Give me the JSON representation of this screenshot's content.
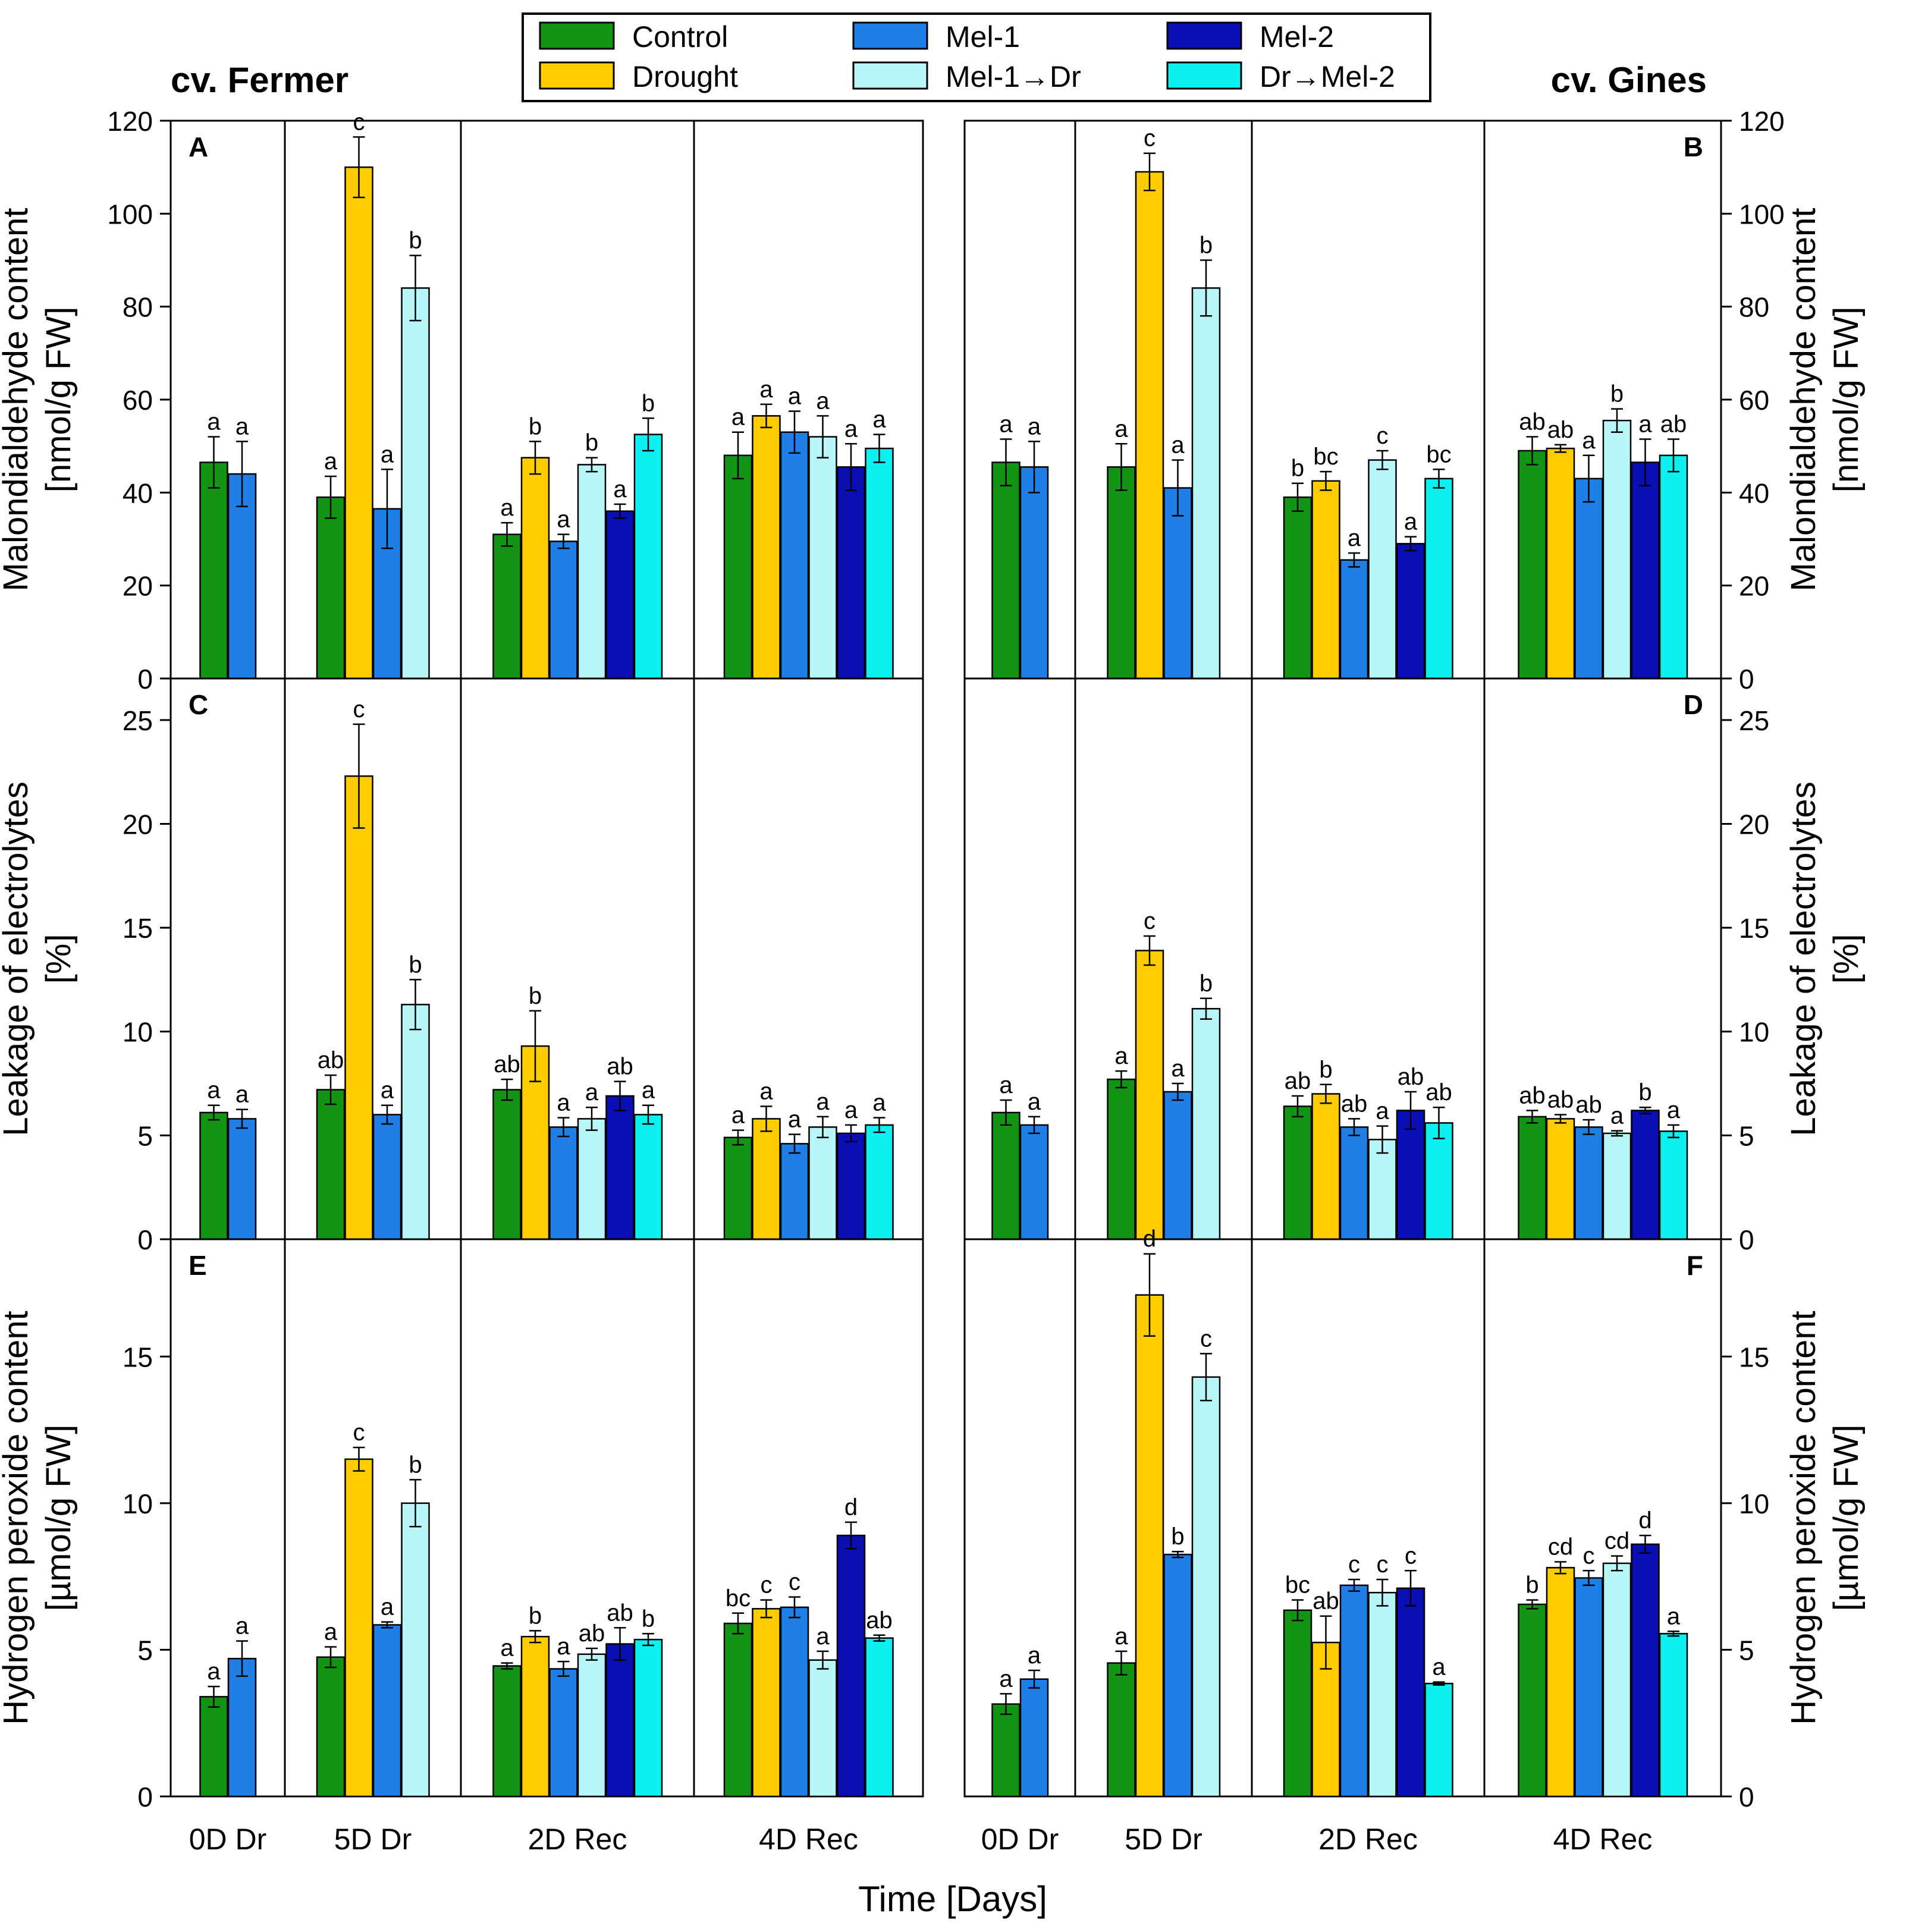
{
  "figure": {
    "left_title": "cv. Fermer",
    "right_title": "cv. Gines",
    "x_axis_title": "Time [Days]"
  },
  "legend": [
    {
      "label": "Control",
      "color": "#149414"
    },
    {
      "label": "Mel-1",
      "color": "#1f7fe6"
    },
    {
      "label": "Mel-2",
      "color": "#0a0fb4"
    },
    {
      "label": "Drought",
      "color": "#ffcc00"
    },
    {
      "label": "Mel-1→Dr",
      "color": "#b8f6f8"
    },
    {
      "label": "Dr→Mel-2",
      "color": "#0cf0f0"
    }
  ],
  "chart_data": [
    {
      "panel": "A",
      "type": "bar",
      "cultivar": "cv. Fermer",
      "ylabel": [
        "Malondialdehyde content",
        "[nmol/g FW]"
      ],
      "ylim": [
        0,
        120
      ],
      "yticks": [
        0,
        20,
        40,
        60,
        80,
        100,
        120
      ],
      "groups": [
        {
          "label": "0D Dr",
          "bars": [
            {
              "series": "Control",
              "value": 46.5,
              "err": 5.5,
              "sig": "a"
            },
            {
              "series": "Mel-1",
              "value": 44,
              "err": 7,
              "sig": "a"
            }
          ]
        },
        {
          "label": "5D Dr",
          "bars": [
            {
              "series": "Control",
              "value": 39,
              "err": 4.5,
              "sig": "a"
            },
            {
              "series": "Drought",
              "value": 110,
              "err": 6.5,
              "sig": "c"
            },
            {
              "series": "Mel-1",
              "value": 36.5,
              "err": 8.5,
              "sig": "a"
            },
            {
              "series": "Mel-1→Dr",
              "value": 84,
              "err": 7,
              "sig": "b"
            }
          ]
        },
        {
          "label": "2D Rec",
          "bars": [
            {
              "series": "Control",
              "value": 31,
              "err": 2.5,
              "sig": "a"
            },
            {
              "series": "Drought",
              "value": 47.5,
              "err": 3.5,
              "sig": "b"
            },
            {
              "series": "Mel-1",
              "value": 29.5,
              "err": 1.5,
              "sig": "a"
            },
            {
              "series": "Mel-1→Dr",
              "value": 46,
              "err": 1.5,
              "sig": "b"
            },
            {
              "series": "Mel-2",
              "value": 36,
              "err": 1.5,
              "sig": "a"
            },
            {
              "series": "Dr→Mel-2",
              "value": 52.5,
              "err": 3.5,
              "sig": "b"
            }
          ]
        },
        {
          "label": "4D Rec",
          "bars": [
            {
              "series": "Control",
              "value": 48,
              "err": 5,
              "sig": "a"
            },
            {
              "series": "Drought",
              "value": 56.5,
              "err": 2.5,
              "sig": "a"
            },
            {
              "series": "Mel-1",
              "value": 53,
              "err": 4.5,
              "sig": "a"
            },
            {
              "series": "Mel-1→Dr",
              "value": 52,
              "err": 4.5,
              "sig": "a"
            },
            {
              "series": "Mel-2",
              "value": 45.5,
              "err": 5,
              "sig": "a"
            },
            {
              "series": "Dr→Mel-2",
              "value": 49.5,
              "err": 3,
              "sig": "a"
            }
          ]
        }
      ]
    },
    {
      "panel": "B",
      "type": "bar",
      "cultivar": "cv. Gines",
      "ylabel": [
        "Malondialdehyde content",
        "[nmol/g FW]"
      ],
      "ylim": [
        0,
        120
      ],
      "yticks": [
        0,
        20,
        40,
        60,
        80,
        100,
        120
      ],
      "groups": [
        {
          "label": "0D Dr",
          "bars": [
            {
              "series": "Control",
              "value": 46.5,
              "err": 5,
              "sig": "a"
            },
            {
              "series": "Mel-1",
              "value": 45.5,
              "err": 5.5,
              "sig": "a"
            }
          ]
        },
        {
          "label": "5D Dr",
          "bars": [
            {
              "series": "Control",
              "value": 45.5,
              "err": 5,
              "sig": "a"
            },
            {
              "series": "Drought",
              "value": 109,
              "err": 4,
              "sig": "c"
            },
            {
              "series": "Mel-1",
              "value": 41,
              "err": 6,
              "sig": "a"
            },
            {
              "series": "Mel-1→Dr",
              "value": 84,
              "err": 6,
              "sig": "b"
            }
          ]
        },
        {
          "label": "2D Rec",
          "bars": [
            {
              "series": "Control",
              "value": 39,
              "err": 3,
              "sig": "b"
            },
            {
              "series": "Drought",
              "value": 42.5,
              "err": 2,
              "sig": "bc"
            },
            {
              "series": "Mel-1",
              "value": 25.5,
              "err": 1.5,
              "sig": "a"
            },
            {
              "series": "Mel-1→Dr",
              "value": 47,
              "err": 2,
              "sig": "c"
            },
            {
              "series": "Mel-2",
              "value": 29,
              "err": 1.5,
              "sig": "a"
            },
            {
              "series": "Dr→Mel-2",
              "value": 43,
              "err": 2,
              "sig": "bc"
            }
          ]
        },
        {
          "label": "4D Rec",
          "bars": [
            {
              "series": "Control",
              "value": 49,
              "err": 3,
              "sig": "ab"
            },
            {
              "series": "Drought",
              "value": 49.5,
              "err": 0.8,
              "sig": "ab"
            },
            {
              "series": "Mel-1",
              "value": 43,
              "err": 5,
              "sig": "a"
            },
            {
              "series": "Mel-1→Dr",
              "value": 55.5,
              "err": 2.5,
              "sig": "b"
            },
            {
              "series": "Mel-2",
              "value": 46.5,
              "err": 5,
              "sig": "a"
            },
            {
              "series": "Dr→Mel-2",
              "value": 48,
              "err": 3.5,
              "sig": "ab"
            }
          ]
        }
      ]
    },
    {
      "panel": "C",
      "type": "bar",
      "cultivar": "cv. Fermer",
      "ylabel": [
        "Leakage of electrolytes",
        "[%]"
      ],
      "ylim": [
        0,
        27
      ],
      "yticks": [
        0,
        5,
        10,
        15,
        20,
        25
      ],
      "groups": [
        {
          "label": "0D Dr",
          "bars": [
            {
              "series": "Control",
              "value": 6.1,
              "err": 0.35,
              "sig": "a"
            },
            {
              "series": "Mel-1",
              "value": 5.8,
              "err": 0.45,
              "sig": "a"
            }
          ]
        },
        {
          "label": "5D Dr",
          "bars": [
            {
              "series": "Control",
              "value": 7.2,
              "err": 0.7,
              "sig": "ab"
            },
            {
              "series": "Drought",
              "value": 22.3,
              "err": 2.5,
              "sig": "c"
            },
            {
              "series": "Mel-1",
              "value": 6,
              "err": 0.45,
              "sig": "a"
            },
            {
              "series": "Mel-1→Dr",
              "value": 11.3,
              "err": 1.2,
              "sig": "b"
            }
          ]
        },
        {
          "label": "2D Rec",
          "bars": [
            {
              "series": "Control",
              "value": 7.2,
              "err": 0.5,
              "sig": "ab"
            },
            {
              "series": "Drought",
              "value": 9.3,
              "err": 1.7,
              "sig": "b"
            },
            {
              "series": "Mel-1",
              "value": 5.4,
              "err": 0.45,
              "sig": "a"
            },
            {
              "series": "Mel-1→Dr",
              "value": 5.8,
              "err": 0.55,
              "sig": "a"
            },
            {
              "series": "Mel-2",
              "value": 6.9,
              "err": 0.7,
              "sig": "ab"
            },
            {
              "series": "Dr→Mel-2",
              "value": 6,
              "err": 0.45,
              "sig": "a"
            }
          ]
        },
        {
          "label": "4D Rec",
          "bars": [
            {
              "series": "Control",
              "value": 4.9,
              "err": 0.35,
              "sig": "a"
            },
            {
              "series": "Drought",
              "value": 5.8,
              "err": 0.6,
              "sig": "a"
            },
            {
              "series": "Mel-1",
              "value": 4.6,
              "err": 0.45,
              "sig": "a"
            },
            {
              "series": "Mel-1→Dr",
              "value": 5.4,
              "err": 0.5,
              "sig": "a"
            },
            {
              "series": "Mel-2",
              "value": 5.1,
              "err": 0.4,
              "sig": "a"
            },
            {
              "series": "Dr→Mel-2",
              "value": 5.5,
              "err": 0.35,
              "sig": "a"
            }
          ]
        }
      ]
    },
    {
      "panel": "D",
      "type": "bar",
      "cultivar": "cv. Gines",
      "ylabel": [
        "Leakage of electrolytes",
        "[%]"
      ],
      "ylim": [
        0,
        27
      ],
      "yticks": [
        0,
        5,
        10,
        15,
        20,
        25
      ],
      "groups": [
        {
          "label": "0D Dr",
          "bars": [
            {
              "series": "Control",
              "value": 6.1,
              "err": 0.6,
              "sig": "a"
            },
            {
              "series": "Mel-1",
              "value": 5.5,
              "err": 0.4,
              "sig": "a"
            }
          ]
        },
        {
          "label": "5D Dr",
          "bars": [
            {
              "series": "Control",
              "value": 7.7,
              "err": 0.4,
              "sig": "a"
            },
            {
              "series": "Drought",
              "value": 13.9,
              "err": 0.7,
              "sig": "c"
            },
            {
              "series": "Mel-1",
              "value": 7.1,
              "err": 0.4,
              "sig": "a"
            },
            {
              "series": "Mel-1→Dr",
              "value": 11.1,
              "err": 0.5,
              "sig": "b"
            }
          ]
        },
        {
          "label": "2D Rec",
          "bars": [
            {
              "series": "Control",
              "value": 6.4,
              "err": 0.5,
              "sig": "ab"
            },
            {
              "series": "Drought",
              "value": 7,
              "err": 0.45,
              "sig": "b"
            },
            {
              "series": "Mel-1",
              "value": 5.4,
              "err": 0.4,
              "sig": "ab"
            },
            {
              "series": "Mel-1→Dr",
              "value": 4.8,
              "err": 0.65,
              "sig": "a"
            },
            {
              "series": "Mel-2",
              "value": 6.2,
              "err": 0.9,
              "sig": "ab"
            },
            {
              "series": "Dr→Mel-2",
              "value": 5.6,
              "err": 0.75,
              "sig": "ab"
            }
          ]
        },
        {
          "label": "4D Rec",
          "bars": [
            {
              "series": "Control",
              "value": 5.9,
              "err": 0.3,
              "sig": "ab"
            },
            {
              "series": "Drought",
              "value": 5.8,
              "err": 0.2,
              "sig": "ab"
            },
            {
              "series": "Mel-1",
              "value": 5.4,
              "err": 0.35,
              "sig": "ab"
            },
            {
              "series": "Mel-1→Dr",
              "value": 5.1,
              "err": 0.12,
              "sig": "a"
            },
            {
              "series": "Mel-2",
              "value": 6.2,
              "err": 0.15,
              "sig": "b"
            },
            {
              "series": "Dr→Mel-2",
              "value": 5.2,
              "err": 0.3,
              "sig": "a"
            }
          ]
        }
      ]
    },
    {
      "panel": "E",
      "type": "bar",
      "cultivar": "cv. Fermer",
      "ylabel": [
        "Hydrogen peroxide content",
        "[µmol/g FW]"
      ],
      "ylim": [
        0,
        19
      ],
      "yticks": [
        0,
        5,
        10,
        15
      ],
      "groups": [
        {
          "label": "0D Dr",
          "bars": [
            {
              "series": "Control",
              "value": 3.4,
              "err": 0.35,
              "sig": "a"
            },
            {
              "series": "Mel-1",
              "value": 4.7,
              "err": 0.6,
              "sig": "a"
            }
          ]
        },
        {
          "label": "5D Dr",
          "bars": [
            {
              "series": "Control",
              "value": 4.75,
              "err": 0.35,
              "sig": "a"
            },
            {
              "series": "Drought",
              "value": 11.5,
              "err": 0.4,
              "sig": "c"
            },
            {
              "series": "Mel-1",
              "value": 5.85,
              "err": 0.1,
              "sig": "a"
            },
            {
              "series": "Mel-1→Dr",
              "value": 10,
              "err": 0.8,
              "sig": "b"
            }
          ]
        },
        {
          "label": "2D Rec",
          "bars": [
            {
              "series": "Control",
              "value": 4.45,
              "err": 0.1,
              "sig": "a"
            },
            {
              "series": "Drought",
              "value": 5.45,
              "err": 0.2,
              "sig": "b"
            },
            {
              "series": "Mel-1",
              "value": 4.35,
              "err": 0.25,
              "sig": "a"
            },
            {
              "series": "Mel-1→Dr",
              "value": 4.85,
              "err": 0.2,
              "sig": "ab"
            },
            {
              "series": "Mel-2",
              "value": 5.2,
              "err": 0.55,
              "sig": "ab"
            },
            {
              "series": "Dr→Mel-2",
              "value": 5.35,
              "err": 0.2,
              "sig": "b"
            }
          ]
        },
        {
          "label": "4D Rec",
          "bars": [
            {
              "series": "Control",
              "value": 5.9,
              "err": 0.35,
              "sig": "bc"
            },
            {
              "series": "Drought",
              "value": 6.4,
              "err": 0.3,
              "sig": "c"
            },
            {
              "series": "Mel-1",
              "value": 6.45,
              "err": 0.35,
              "sig": "c"
            },
            {
              "series": "Mel-1→Dr",
              "value": 4.65,
              "err": 0.3,
              "sig": "a"
            },
            {
              "series": "Mel-2",
              "value": 8.9,
              "err": 0.45,
              "sig": "d"
            },
            {
              "series": "Dr→Mel-2",
              "value": 5.4,
              "err": 0.1,
              "sig": "ab"
            }
          ]
        }
      ]
    },
    {
      "panel": "F",
      "type": "bar",
      "cultivar": "cv. Gines",
      "ylabel": [
        "Hydrogen peroxide content",
        "[µmol/g FW]"
      ],
      "ylim": [
        0,
        19
      ],
      "yticks": [
        0,
        5,
        10,
        15
      ],
      "groups": [
        {
          "label": "0D Dr",
          "bars": [
            {
              "series": "Control",
              "value": 3.15,
              "err": 0.35,
              "sig": "a"
            },
            {
              "series": "Mel-1",
              "value": 4,
              "err": 0.3,
              "sig": "a"
            }
          ]
        },
        {
          "label": "5D Dr",
          "bars": [
            {
              "series": "Control",
              "value": 4.55,
              "err": 0.4,
              "sig": "a"
            },
            {
              "series": "Drought",
              "value": 17.1,
              "err": 1.4,
              "sig": "d"
            },
            {
              "series": "Mel-1",
              "value": 8.25,
              "err": 0.1,
              "sig": "b"
            },
            {
              "series": "Mel-1→Dr",
              "value": 14.3,
              "err": 0.8,
              "sig": "c"
            }
          ]
        },
        {
          "label": "2D Rec",
          "bars": [
            {
              "series": "Control",
              "value": 6.35,
              "err": 0.35,
              "sig": "bc"
            },
            {
              "series": "Drought",
              "value": 5.25,
              "err": 0.9,
              "sig": "ab"
            },
            {
              "series": "Mel-1",
              "value": 7.2,
              "err": 0.2,
              "sig": "c"
            },
            {
              "series": "Mel-1→Dr",
              "value": 6.95,
              "err": 0.45,
              "sig": "c"
            },
            {
              "series": "Mel-2",
              "value": 7.1,
              "err": 0.6,
              "sig": "c"
            },
            {
              "series": "Dr→Mel-2",
              "value": 3.85,
              "err": 0.05,
              "sig": "a"
            }
          ]
        },
        {
          "label": "4D Rec",
          "bars": [
            {
              "series": "Control",
              "value": 6.55,
              "err": 0.15,
              "sig": "b"
            },
            {
              "series": "Drought",
              "value": 7.8,
              "err": 0.2,
              "sig": "cd"
            },
            {
              "series": "Mel-1",
              "value": 7.45,
              "err": 0.25,
              "sig": "c"
            },
            {
              "series": "Mel-1→Dr",
              "value": 7.95,
              "err": 0.25,
              "sig": "cd"
            },
            {
              "series": "Mel-2",
              "value": 8.6,
              "err": 0.3,
              "sig": "d"
            },
            {
              "series": "Dr→Mel-2",
              "value": 5.55,
              "err": 0.08,
              "sig": "a"
            }
          ]
        }
      ]
    }
  ]
}
